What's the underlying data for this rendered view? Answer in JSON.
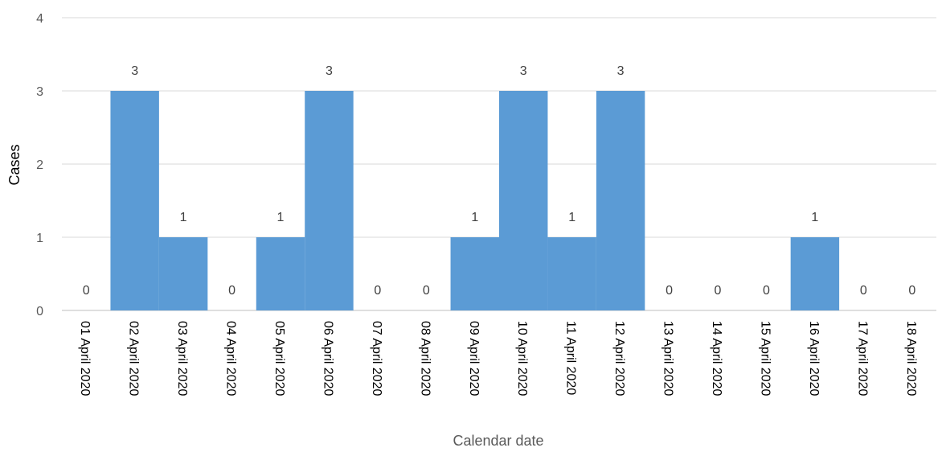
{
  "chart_data": {
    "type": "bar",
    "title": "",
    "xlabel": "Calendar date",
    "ylabel": "Cases",
    "ylim": [
      0,
      4
    ],
    "yticks": [
      0,
      1,
      2,
      3,
      4
    ],
    "grid": true,
    "legend": "none",
    "colors": {
      "bar": "#5b9bd5",
      "grid": "#d9d9d9",
      "axis": "#bfbfbf"
    },
    "categories": [
      "01 April 2020",
      "02 April 2020",
      "03 April 2020",
      "04 April 2020",
      "05 April 2020",
      "06 April 2020",
      "07 April 2020",
      "08 April 2020",
      "09 April 2020",
      "10 April 2020",
      "11 April 2020",
      "12 April 2020",
      "13 April 2020",
      "14 April 2020",
      "15 April 2020",
      "16 April 2020",
      "17 April 2020",
      "18 April 2020"
    ],
    "values": [
      0,
      3,
      1,
      0,
      1,
      3,
      0,
      0,
      1,
      3,
      1,
      3,
      0,
      0,
      0,
      1,
      0,
      0
    ]
  }
}
